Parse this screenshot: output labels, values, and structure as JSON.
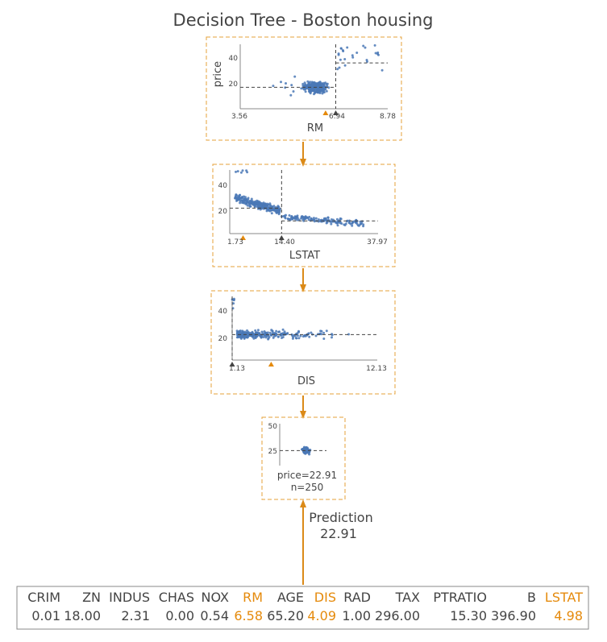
{
  "title": "Decision Tree - Boston housing",
  "colors": {
    "node_border": "#E5A23A",
    "dot": "#4A78B6",
    "arrow": "#DB8A18",
    "marker_orange": "#E58A0C",
    "marker_dark": "#444444",
    "highlight": "#E58A0C"
  },
  "nodes": [
    {
      "id": "rm",
      "feature": "RM",
      "ylabel": "price",
      "x_ticks": [
        "3.56",
        "6.94",
        "8.78"
      ],
      "y_ticks": [
        "40",
        "20"
      ],
      "x_range": [
        3.56,
        8.78
      ],
      "y_range": [
        5,
        50
      ],
      "split": 6.94,
      "instance_value": 6.58,
      "left_mean": 20,
      "right_mean": 37
    },
    {
      "id": "lstat",
      "feature": "LSTAT",
      "ylabel": "",
      "x_ticks": [
        "1.73",
        "14.40",
        "37.97"
      ],
      "y_ticks": [
        "40",
        "20"
      ],
      "x_range": [
        1.73,
        37.97
      ],
      "y_range": [
        5,
        50
      ],
      "split": 14.4,
      "instance_value": 4.98,
      "left_mean": 23,
      "right_mean": 14
    },
    {
      "id": "dis",
      "feature": "DIS",
      "ylabel": "",
      "x_ticks": [
        "1.13",
        "12.13"
      ],
      "y_ticks": [
        "40",
        "20"
      ],
      "x_range": [
        1.13,
        12.13
      ],
      "y_range": [
        5,
        50
      ],
      "split": 1.13,
      "instance_value": 4.09,
      "left_mean": 50,
      "right_mean": 23
    }
  ],
  "leaf": {
    "y_ticks": [
      "50",
      "25"
    ],
    "y_range": [
      5,
      55
    ],
    "mean": 22.91,
    "price_text": "price=22.91",
    "n_text": "n=250"
  },
  "prediction": {
    "label": "Prediction",
    "value": "22.91"
  },
  "instance_table": {
    "columns": [
      {
        "name": "CRIM",
        "value": "0.01",
        "highlight": false
      },
      {
        "name": "ZN",
        "value": "18.00",
        "highlight": false
      },
      {
        "name": "INDUS",
        "value": "2.31",
        "highlight": false
      },
      {
        "name": "CHAS",
        "value": "0.00",
        "highlight": false
      },
      {
        "name": "NOX",
        "value": "0.54",
        "highlight": false
      },
      {
        "name": "RM",
        "value": "6.58",
        "highlight": true
      },
      {
        "name": "AGE",
        "value": "65.20",
        "highlight": false
      },
      {
        "name": "DIS",
        "value": "4.09",
        "highlight": true
      },
      {
        "name": "RAD",
        "value": "1.00",
        "highlight": false
      },
      {
        "name": "TAX",
        "value": "296.00",
        "highlight": false
      },
      {
        "name": "PTRATIO",
        "value": "15.30",
        "highlight": false
      },
      {
        "name": "B",
        "value": "396.90",
        "highlight": false
      },
      {
        "name": "LSTAT",
        "value": "4.98",
        "highlight": true
      }
    ]
  }
}
